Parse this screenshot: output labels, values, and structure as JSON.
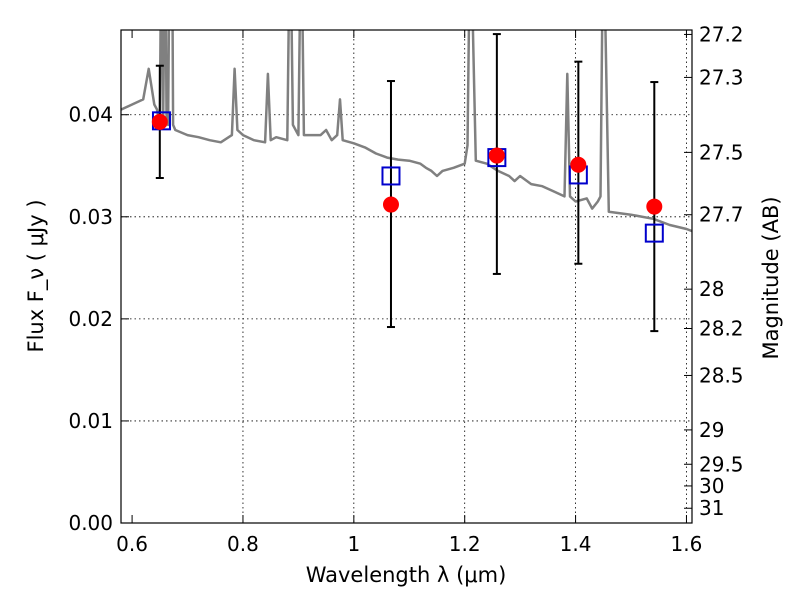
{
  "chart_data": {
    "type": "scatter",
    "title": "",
    "xlabel": "Wavelength  λ (μm)",
    "ylabel": "Flux  F_ν  ( μJy )",
    "ylabel_right": "Magnitude (AB)",
    "xlim": [
      0.58,
      1.61
    ],
    "ylim": [
      0.0,
      0.0483
    ],
    "x_ticks": [
      0.6,
      0.8,
      1.0,
      1.2,
      1.4,
      1.6
    ],
    "x_tick_labels": [
      "0.6",
      "0.8",
      "1",
      "1.2",
      "1.4",
      "1.6"
    ],
    "y_ticks": [
      0.0,
      0.01,
      0.02,
      0.03,
      0.04
    ],
    "y_tick_labels": [
      "0.00",
      "0.01",
      "0.02",
      "0.03",
      "0.04"
    ],
    "right_axis": {
      "scale": "AB magnitude (m = -2.5 log10(F/3631 Jy))",
      "tick_labels": [
        "27.2",
        "27.3",
        "27.5",
        "27.7",
        "28",
        "28.2",
        "28.5",
        "29",
        "29.5",
        "30",
        "31"
      ],
      "tick_values": [
        27.2,
        27.3,
        27.5,
        27.7,
        28.0,
        28.2,
        28.5,
        29.0,
        29.5,
        30.0,
        31.0
      ]
    },
    "grid": true,
    "colors": {
      "model": "#808080",
      "observed": "#ff0000",
      "model_band": "#0000cc",
      "errorbar": "#000000"
    },
    "series": [
      {
        "kind": "line",
        "x": [
          0.58,
          0.6,
          0.62,
          0.63,
          0.64,
          0.645,
          0.65,
          0.653,
          0.656,
          0.66,
          0.662,
          0.665,
          0.668,
          0.672,
          0.674,
          0.678,
          0.7,
          0.72,
          0.74,
          0.76,
          0.78,
          0.785,
          0.79,
          0.8,
          0.82,
          0.84,
          0.845,
          0.85,
          0.86,
          0.88,
          0.885,
          0.89,
          0.9,
          0.905,
          0.91,
          0.92,
          0.94,
          0.95,
          0.96,
          0.97,
          0.975,
          0.98,
          1.0,
          1.02,
          1.04,
          1.06,
          1.08,
          1.1,
          1.12,
          1.13,
          1.14,
          1.15,
          1.16,
          1.18,
          1.2,
          1.205,
          1.21,
          1.22,
          1.24,
          1.26,
          1.28,
          1.29,
          1.3,
          1.32,
          1.34,
          1.36,
          1.38,
          1.385,
          1.39,
          1.4,
          1.42,
          1.43,
          1.44,
          1.445,
          1.45,
          1.46,
          1.5,
          1.54,
          1.57,
          1.6,
          1.61
        ],
        "y": [
          0.0405,
          0.041,
          0.0415,
          0.0445,
          0.041,
          0.0405,
          0.039,
          0.06,
          0.039,
          0.06,
          0.04,
          0.039,
          0.06,
          0.06,
          0.039,
          0.0385,
          0.038,
          0.0378,
          0.0375,
          0.0373,
          0.038,
          0.0445,
          0.0385,
          0.038,
          0.0375,
          0.0373,
          0.044,
          0.0375,
          0.0378,
          0.0375,
          0.06,
          0.039,
          0.038,
          0.06,
          0.038,
          0.038,
          0.038,
          0.0385,
          0.0375,
          0.038,
          0.0415,
          0.0375,
          0.0372,
          0.0368,
          0.0362,
          0.0358,
          0.0356,
          0.0355,
          0.0352,
          0.0348,
          0.0345,
          0.034,
          0.0345,
          0.0348,
          0.0352,
          0.037,
          0.06,
          0.0355,
          0.0352,
          0.0345,
          0.034,
          0.0335,
          0.034,
          0.0332,
          0.033,
          0.0325,
          0.032,
          0.044,
          0.032,
          0.0315,
          0.0318,
          0.0308,
          0.0315,
          0.032,
          0.06,
          0.0305,
          0.0302,
          0.0298,
          0.0292,
          0.0288,
          0.0286
        ]
      },
      {
        "kind": "markers",
        "marker": "circle",
        "x": [
          0.65,
          1.067,
          1.258,
          1.405,
          1.542
        ],
        "y": [
          0.0393,
          0.0312,
          0.036,
          0.0351,
          0.031
        ],
        "yerr_low": [
          0.0338,
          0.0192,
          0.0244,
          0.0254,
          0.0188
        ],
        "yerr_high": [
          0.0448,
          0.0433,
          0.0479,
          0.0452,
          0.0432
        ]
      },
      {
        "kind": "markers",
        "marker": "square",
        "x": [
          0.653,
          1.067,
          1.258,
          1.405,
          1.542
        ],
        "y": [
          0.0394,
          0.034,
          0.0358,
          0.0341,
          0.0284
        ]
      }
    ]
  }
}
